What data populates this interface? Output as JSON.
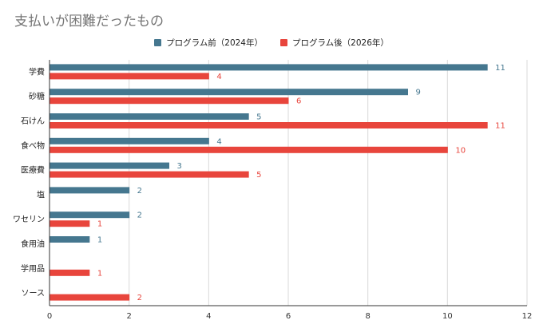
{
  "chart_data": {
    "type": "bar",
    "orientation": "horizontal",
    "title": "支払いが困難だったもの",
    "categories": [
      "学費",
      "砂糖",
      "石けん",
      "食べ物",
      "医療費",
      "塩",
      "ワセリン",
      "食用油",
      "学用品",
      "ソース"
    ],
    "series": [
      {
        "name": "プログラム前（2024年）",
        "color": "#45778f",
        "values": [
          11,
          9,
          5,
          4,
          3,
          2,
          2,
          1,
          null,
          null
        ],
        "labels": [
          "11",
          "9",
          "5",
          "4",
          "3",
          "2",
          "2",
          "1",
          "",
          ""
        ]
      },
      {
        "name": "プログラム後（2026年）",
        "color": "#e8453c",
        "values": [
          4,
          6,
          11,
          10,
          5,
          null,
          1,
          null,
          1,
          2
        ],
        "labels": [
          "4",
          "6",
          "11",
          "10",
          "5",
          "",
          "1",
          "",
          "1",
          "2"
        ]
      }
    ],
    "xlim": [
      0,
      12
    ],
    "xticks": [
      "0",
      "2",
      "4",
      "6",
      "8",
      "10",
      "12"
    ],
    "grid": true,
    "legend_position": "top"
  }
}
